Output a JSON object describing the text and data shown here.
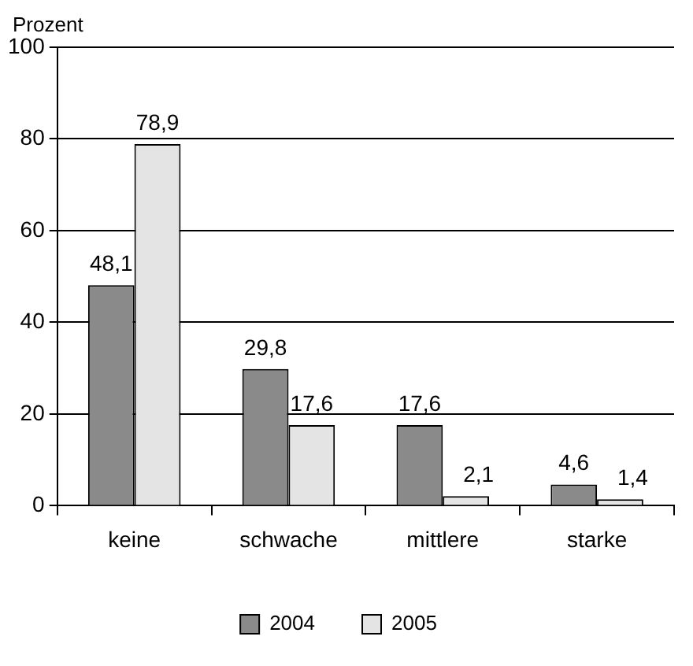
{
  "chart_data": {
    "type": "bar",
    "ylabel": "Prozent",
    "categories": [
      "keine",
      "schwache",
      "mittlere",
      "starke"
    ],
    "series": [
      {
        "name": "2004",
        "color": "#8a8a8a",
        "values": [
          48.1,
          29.8,
          17.6,
          4.6
        ],
        "value_labels": [
          "48,1",
          "29,8",
          "17,6",
          "4,6"
        ]
      },
      {
        "name": "2005",
        "color": "#e4e4e4",
        "values": [
          78.9,
          17.6,
          2.1,
          1.4
        ],
        "value_labels": [
          "78,9",
          "17,6",
          "2,1",
          "1,4"
        ]
      }
    ],
    "ylim": [
      0,
      100
    ],
    "yticks": [
      0,
      20,
      40,
      60,
      80,
      100
    ],
    "grid": "y",
    "legend": "bottom"
  }
}
